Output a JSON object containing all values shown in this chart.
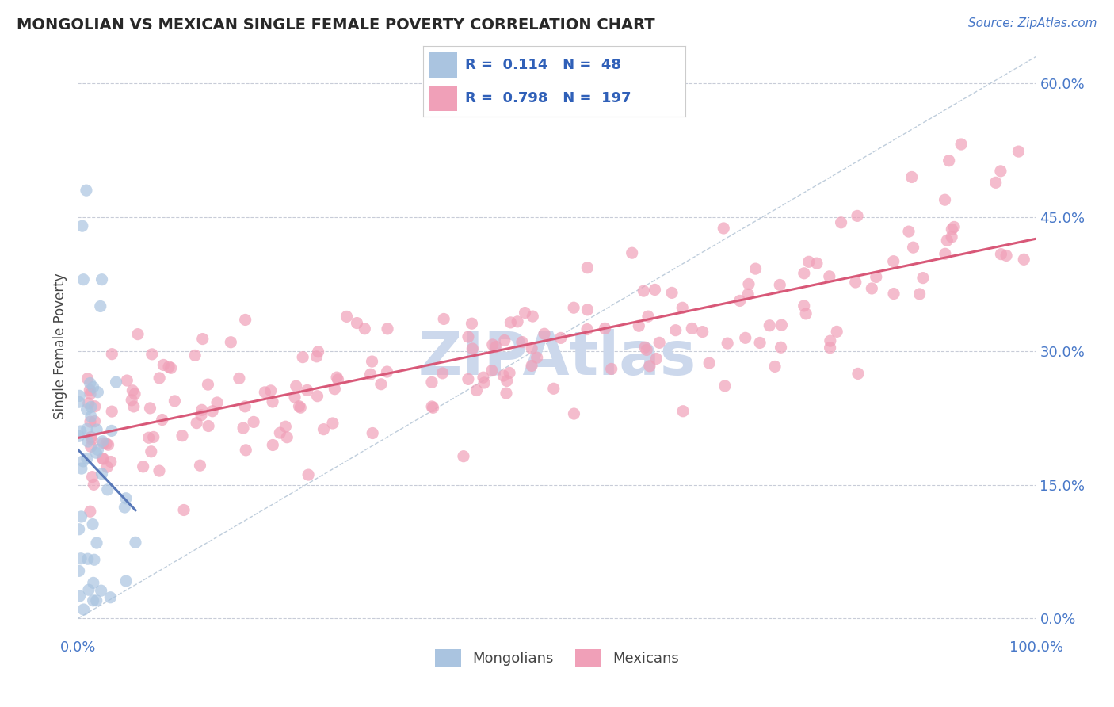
{
  "title": "MONGOLIAN VS MEXICAN SINGLE FEMALE POVERTY CORRELATION CHART",
  "source": "Source: ZipAtlas.com",
  "ylabel": "Single Female Poverty",
  "xlim": [
    0.0,
    1.0
  ],
  "ylim": [
    -0.02,
    0.63
  ],
  "plot_ylim": [
    -0.02,
    0.63
  ],
  "ytick_vals": [
    0.0,
    0.15,
    0.3,
    0.45,
    0.6
  ],
  "ytick_labels": [
    "0.0%",
    "15.0%",
    "30.0%",
    "45.0%",
    "60.0%"
  ],
  "xtick_vals": [
    0.0,
    1.0
  ],
  "xtick_labels": [
    "0.0%",
    "100.0%"
  ],
  "legend_r_mongolian": "0.114",
  "legend_n_mongolian": "48",
  "legend_r_mexican": "0.798",
  "legend_n_mexican": "197",
  "mongolian_color": "#aac4e0",
  "mexican_color": "#f0a0b8",
  "mongolian_line_color": "#5878b8",
  "mexican_line_color": "#d85878",
  "diagonal_color": "#b8c8d8",
  "watermark_color": "#ccd8ec",
  "background_color": "#ffffff",
  "grid_color": "#c8ccd8",
  "title_color": "#282828",
  "source_color": "#4878c8",
  "legend_text_color": "#3060b8",
  "tick_color": "#4878c8",
  "ylabel_color": "#444444",
  "bottom_legend_color": "#444444"
}
